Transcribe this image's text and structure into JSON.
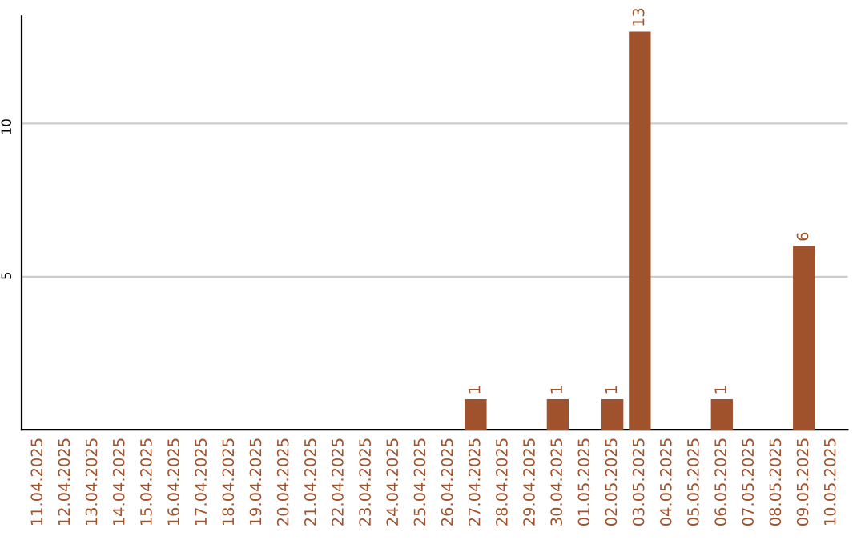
{
  "chart_data": {
    "type": "bar",
    "categories": [
      "11.04.2025",
      "12.04.2025",
      "13.04.2025",
      "14.04.2025",
      "15.04.2025",
      "16.04.2025",
      "17.04.2025",
      "18.04.2025",
      "19.04.2025",
      "20.04.2025",
      "21.04.2025",
      "22.04.2025",
      "23.04.2025",
      "24.04.2025",
      "25.04.2025",
      "26.04.2025",
      "27.04.2025",
      "28.04.2025",
      "29.04.2025",
      "30.04.2025",
      "01.05.2025",
      "02.05.2025",
      "03.05.2025",
      "04.05.2025",
      "05.05.2025",
      "06.05.2025",
      "07.05.2025",
      "08.05.2025",
      "09.05.2025",
      "10.05.2025"
    ],
    "values": [
      0,
      0,
      0,
      0,
      0,
      0,
      0,
      0,
      0,
      0,
      0,
      0,
      0,
      0,
      0,
      0,
      1,
      0,
      0,
      1,
      0,
      1,
      13,
      0,
      0,
      1,
      0,
      0,
      6,
      0
    ],
    "value_labels": [
      null,
      null,
      null,
      null,
      null,
      null,
      null,
      null,
      null,
      null,
      null,
      null,
      null,
      null,
      null,
      null,
      "1",
      null,
      null,
      "1",
      null,
      "1",
      "13",
      null,
      null,
      "1",
      null,
      null,
      "6",
      null
    ],
    "color": "#a0522d",
    "ylim": [
      0,
      13.5
    ],
    "yticks": [
      5,
      10
    ],
    "grid": "y"
  }
}
